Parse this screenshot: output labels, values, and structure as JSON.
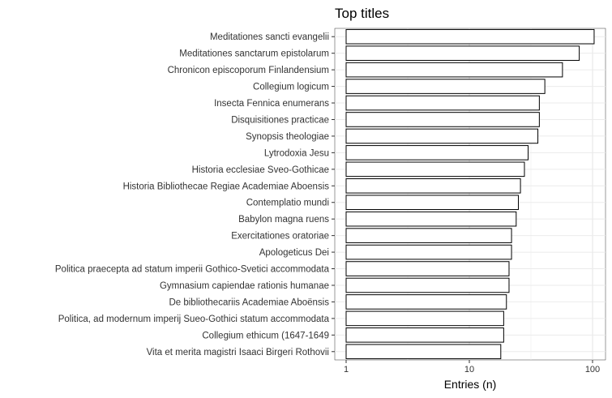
{
  "chart_data": {
    "type": "bar",
    "orientation": "horizontal",
    "title": "Top titles",
    "xlabel": "Entries (n)",
    "ylabel": "",
    "x_scale": "log10",
    "xlim": [
      1,
      120
    ],
    "x_ticks": [
      {
        "value": 1,
        "label": "1"
      },
      {
        "value": 10,
        "label": "10"
      },
      {
        "value": 100,
        "label": "100"
      }
    ],
    "grid": true,
    "bar_fill": "#ffffff",
    "bar_stroke": "#000000",
    "categories": [
      "Meditationes sancti evangelii",
      "Meditationes sanctarum epistolarum",
      "Chronicon episcoporum Finlandensium",
      "Collegium logicum",
      "Insecta Fennica enumerans",
      "Disquisitiones practicae",
      "Synopsis theologiae",
      "Lytrodoxia Jesu",
      "Historia ecclesiae Sveo-Gothicae",
      "Historia Bibliothecae Regiae Academiae Aboensis",
      "Contemplatio mundi",
      "Babylon magna ruens",
      "Exercitationes oratoriae",
      "Apologeticus Dei",
      "Politica praecepta ad statum imperii Gothico-Svetici accommodata",
      "Gymnasium capiendae rationis humanae",
      "De bibliothecariis Academiae Aboënsis",
      "Politica, ad modernum imperij Sueo-Gothici statum accommodata",
      "Collegium ethicum (1647-1649",
      "Vita et merita magistri Isaaci Birgeri Rothovii"
    ],
    "values": [
      103,
      78,
      57,
      41,
      37,
      37,
      36,
      30,
      28,
      26,
      25,
      24,
      22,
      22,
      21,
      21,
      20,
      19,
      19,
      18
    ]
  }
}
